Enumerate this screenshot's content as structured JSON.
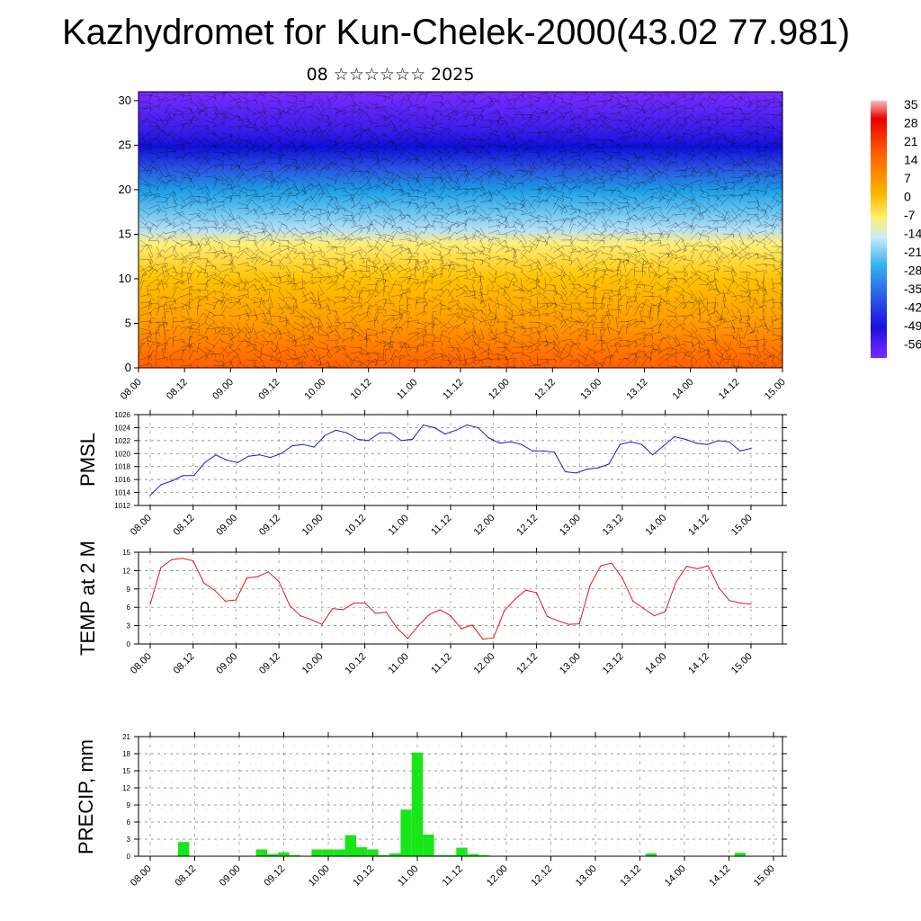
{
  "header": {
    "title": "Kazhydromet for Kun-Chelek-2000(43.02 77.981)",
    "subtitle": "08 ☆☆☆☆☆☆ 2025"
  },
  "colors": {
    "pmsl_line": "#1a1adc",
    "temp_line": "#e01818",
    "precip_bar": "#19e619",
    "grid": "#777777"
  },
  "chart_data": [
    {
      "type": "heatmap",
      "title": "",
      "y_ticks": [
        "0",
        "5",
        "10",
        "15",
        "20",
        "25",
        "30"
      ],
      "ylim": [
        0,
        31
      ],
      "x_ticks": [
        "08.00",
        "08.12",
        "09.00",
        "09.12",
        "10.00",
        "10.12",
        "11.00",
        "11.12",
        "12.00",
        "12.12",
        "13.00",
        "13.12",
        "14.00",
        "14.12",
        "15.00"
      ],
      "colorbar_labels": [
        "35",
        "28",
        "21",
        "14",
        "7",
        "0",
        "-7",
        "-14",
        "-21",
        "-28",
        "-35",
        "-42",
        "-49",
        "-56"
      ],
      "description_levels_bottom_to_top": [
        {
          "level": 0,
          "value": 14
        },
        {
          "level": 5,
          "value": 9
        },
        {
          "level": 10,
          "value": 3
        },
        {
          "level": 14,
          "value": -3
        },
        {
          "level": 16,
          "value": -12
        },
        {
          "level": 20,
          "value": -28
        },
        {
          "level": 23,
          "value": -45
        },
        {
          "level": 25,
          "value": -56
        },
        {
          "level": 28,
          "value": -56
        },
        {
          "level": 31,
          "value": -58
        }
      ]
    },
    {
      "type": "line",
      "ylabel": "PMSL",
      "ylim": [
        1012,
        1026
      ],
      "y_ticks": [
        "1012",
        "1014",
        "1016",
        "1018",
        "1020",
        "1022",
        "1024",
        "1026"
      ],
      "x_ticks": [
        "08.00",
        "08.12",
        "09.00",
        "09.12",
        "10.00",
        "10.12",
        "11.00",
        "11.12",
        "12.00",
        "12.12",
        "13.00",
        "13.12",
        "14.00",
        "14.12",
        "15.00"
      ],
      "series": [
        {
          "values": [
            1013.6,
            1015.2,
            1015.8,
            1016.6,
            1016.6,
            1018.6,
            1019.8,
            1019.0,
            1018.6,
            1019.6,
            1019.8,
            1019.4,
            1020.0,
            1021.2,
            1021.4,
            1021.0,
            1022.8,
            1023.6,
            1023.2,
            1022.2,
            1022.0,
            1023.2,
            1023.2,
            1022.0,
            1022.2,
            1024.4,
            1024.0,
            1023.0,
            1023.6,
            1024.4,
            1024.0,
            1022.4,
            1021.6,
            1021.8,
            1021.4,
            1020.4,
            1020.4,
            1020.2,
            1017.2,
            1017.0,
            1017.6,
            1017.8,
            1018.4,
            1021.4,
            1021.8,
            1021.4,
            1019.8,
            1021.2,
            1022.6,
            1022.2,
            1021.6,
            1021.4,
            1022.0,
            1021.8,
            1020.4,
            1020.8
          ]
        }
      ]
    },
    {
      "type": "line",
      "ylabel": "TEMP at 2 M",
      "ylim": [
        0,
        15
      ],
      "y_ticks": [
        "0",
        "3",
        "6",
        "9",
        "12",
        "15"
      ],
      "x_ticks": [
        "08.00",
        "08.12",
        "09.00",
        "09.12",
        "10.00",
        "10.12",
        "11.00",
        "11.12",
        "12.00",
        "12.12",
        "13.00",
        "13.12",
        "14.00",
        "14.12",
        "15.00"
      ],
      "series": [
        {
          "values": [
            6.5,
            12.5,
            13.8,
            14.0,
            13.6,
            10.0,
            8.8,
            7.0,
            7.2,
            10.8,
            11.0,
            11.8,
            10.2,
            6.3,
            4.6,
            4.0,
            3.2,
            5.8,
            5.6,
            6.7,
            6.7,
            5.0,
            5.2,
            2.6,
            0.9,
            3.0,
            4.8,
            5.6,
            4.6,
            2.5,
            3.1,
            0.8,
            1.0,
            5.4,
            7.3,
            8.8,
            8.4,
            4.5,
            3.8,
            3.2,
            3.3,
            9.6,
            12.8,
            13.2,
            10.8,
            7.0,
            5.8,
            4.6,
            5.3,
            10.1,
            12.7,
            12.3,
            12.8,
            9.2,
            7.1,
            6.7,
            6.5
          ]
        }
      ]
    },
    {
      "type": "bar",
      "ylabel": "PRECIP, mm",
      "ylim": [
        0,
        21
      ],
      "y_ticks": [
        "0",
        "3",
        "6",
        "9",
        "12",
        "15",
        "18",
        "21"
      ],
      "x_ticks": [
        "08.00",
        "08.12",
        "09.00",
        "09.12",
        "10.00",
        "10.12",
        "11.00",
        "11.12",
        "12.00",
        "12.12",
        "13.00",
        "13.12",
        "14.00",
        "14.12",
        "15.00"
      ],
      "values": [
        0,
        0,
        0,
        2.5,
        0,
        0,
        0,
        0,
        0,
        0,
        1.2,
        0.4,
        0.7,
        0.2,
        0,
        1.2,
        1.2,
        1.2,
        3.7,
        1.6,
        1.2,
        0.2,
        0.5,
        8.2,
        18.2,
        3.8,
        0.2,
        0.2,
        1.5,
        0.4,
        0.2,
        0,
        0,
        0,
        0,
        0,
        0,
        0,
        0,
        0,
        0,
        0,
        0,
        0,
        0,
        0.5,
        0,
        0,
        0,
        0,
        0,
        0,
        0,
        0.6,
        0,
        0,
        0
      ]
    }
  ]
}
